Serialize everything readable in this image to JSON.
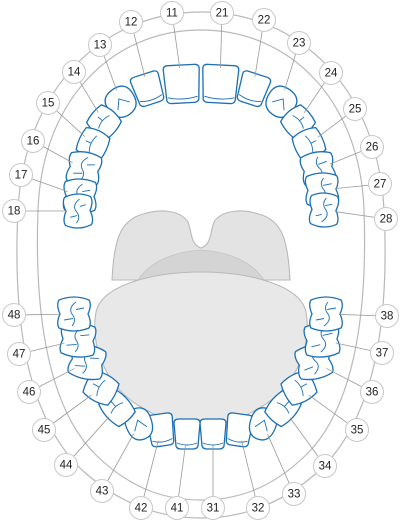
{
  "diagram": {
    "colors": {
      "tooth_stroke": "#1a6fb5",
      "outline": "#b9b9b9",
      "palate_fill": "#e3e3e3",
      "throat_fill": "#d4d4d4",
      "tongue_fill": "#e8e8e8",
      "label_border": "#c8c8c8"
    },
    "upper_labels": [
      "11",
      "12",
      "13",
      "14",
      "15",
      "16",
      "17",
      "18",
      "21",
      "22",
      "23",
      "24",
      "25",
      "26",
      "27",
      "28"
    ],
    "lower_labels": [
      "31",
      "32",
      "33",
      "34",
      "35",
      "36",
      "37",
      "38",
      "41",
      "42",
      "43",
      "44",
      "45",
      "46",
      "47",
      "48"
    ]
  }
}
